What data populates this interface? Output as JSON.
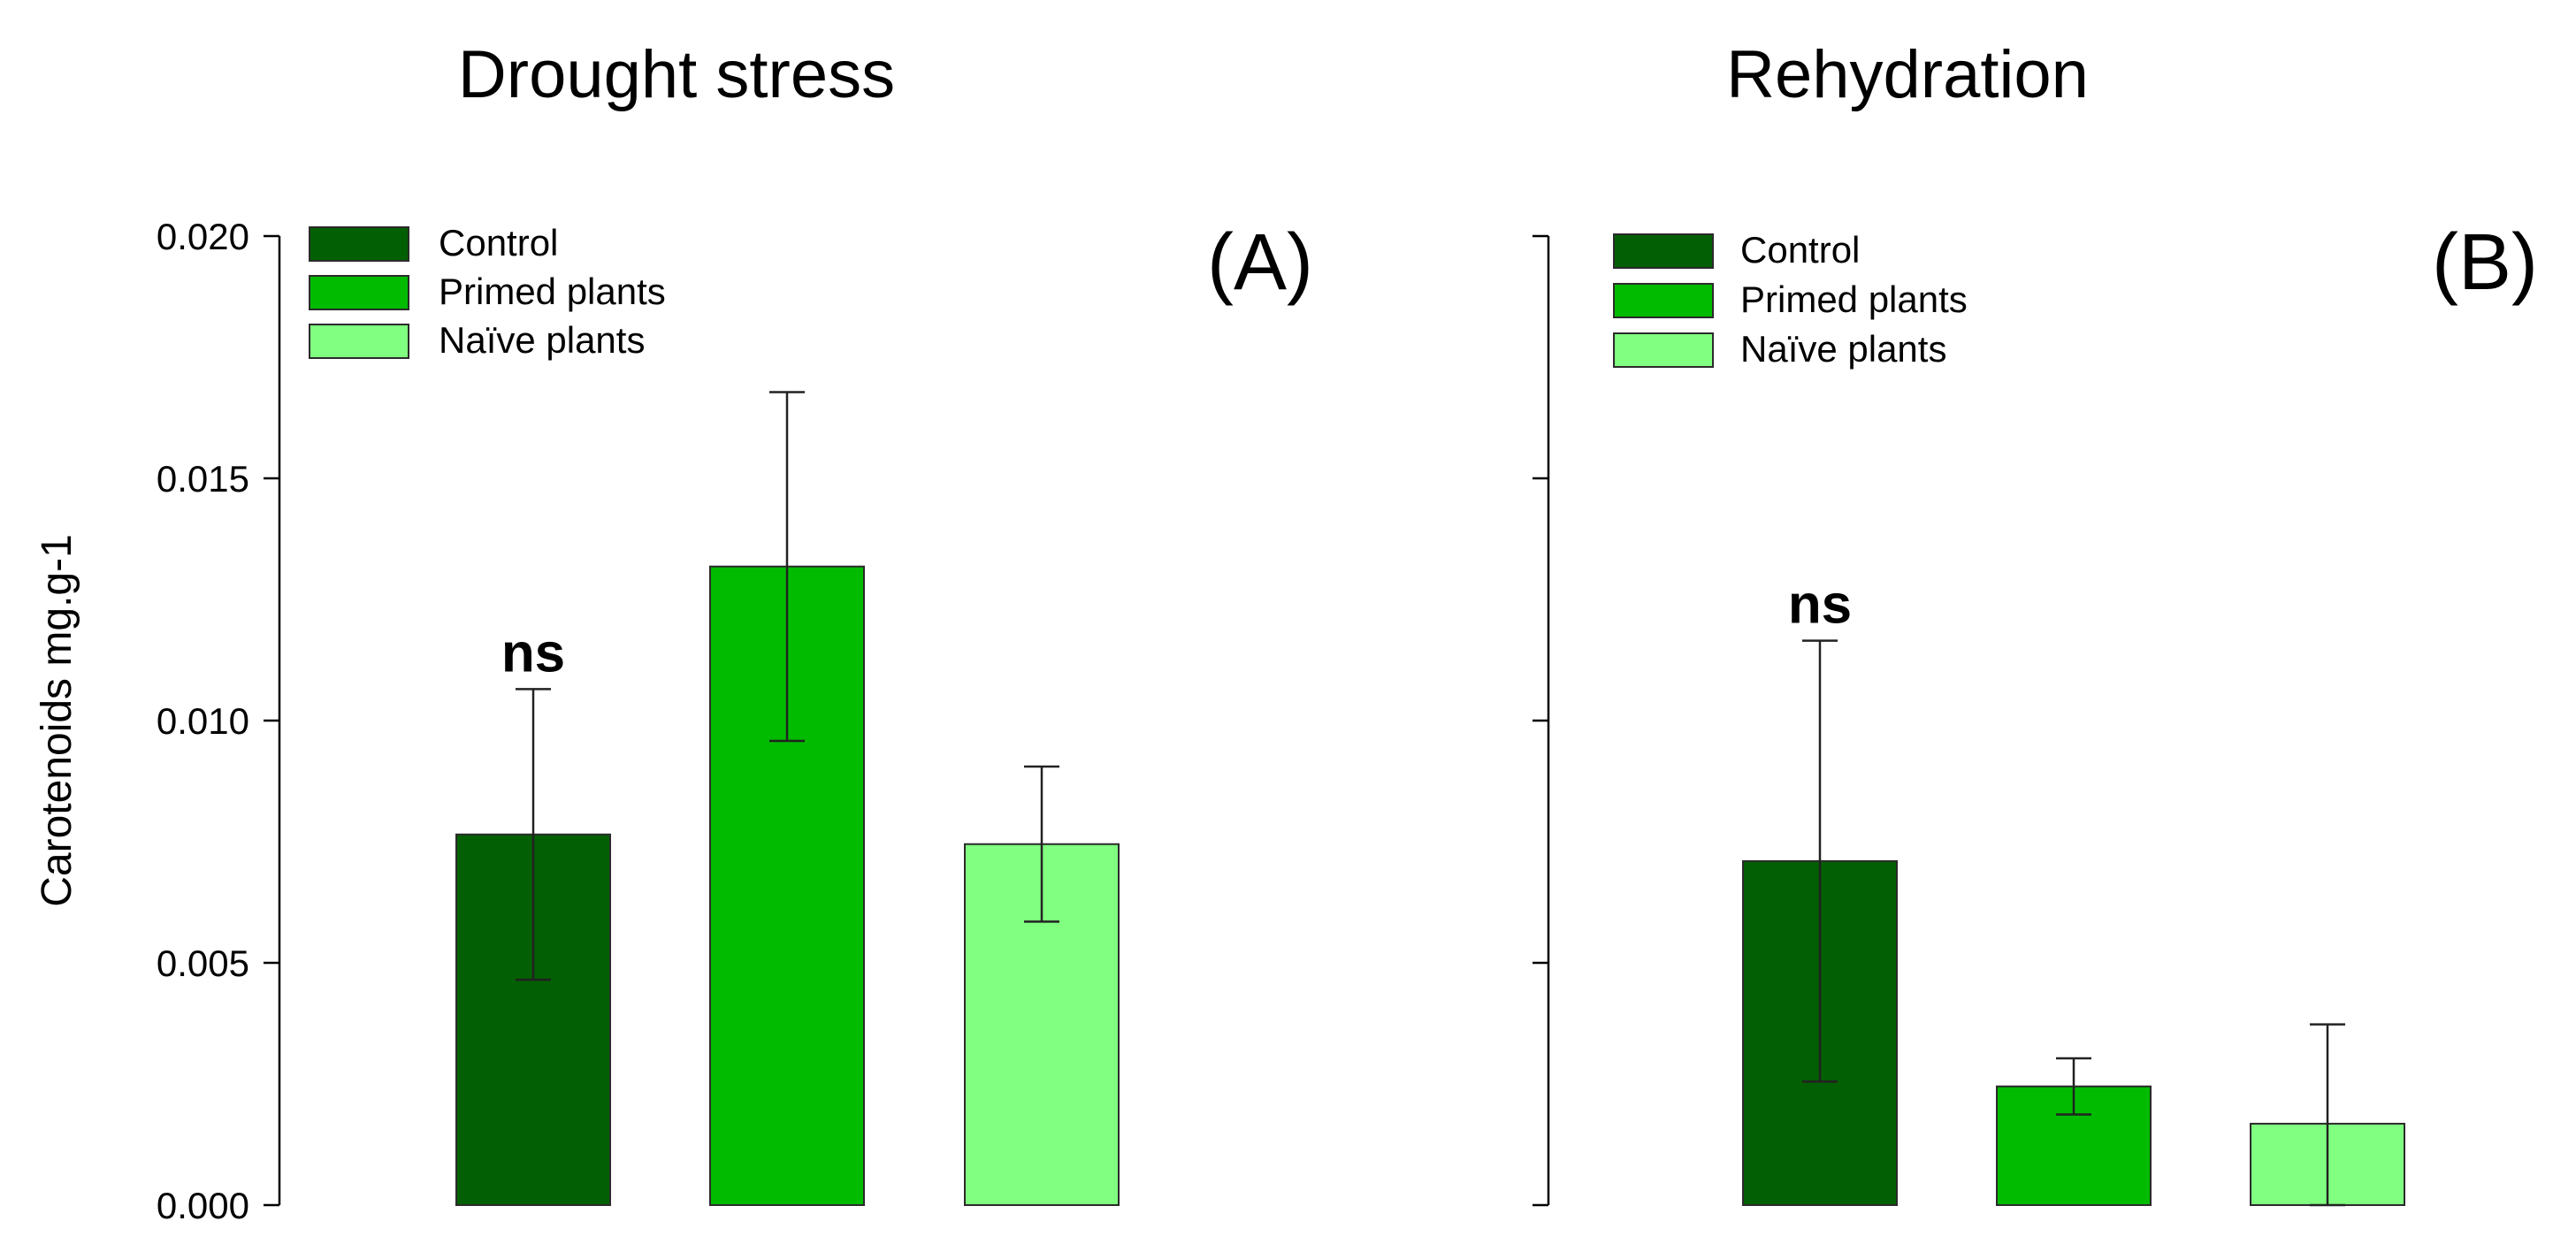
{
  "chart_data": [
    {
      "type": "bar",
      "panel_label": "(A)",
      "title": "Drought stress",
      "ylabel": "Carotenoids mg.g-1",
      "xlabel": "",
      "ylim": [
        0,
        0.02
      ],
      "y_ticks": [
        "0.000",
        "0.005",
        "0.010",
        "0.015",
        "0.020"
      ],
      "y_tick_values": [
        0,
        0.005,
        0.01,
        0.015,
        0.02
      ],
      "grid": false,
      "legend_position": "top-left",
      "categories": [
        "Control",
        "Primed plants",
        "Naïve plants"
      ],
      "series": [
        {
          "name": "Control",
          "color": "#035f03",
          "value": 0.00765,
          "error": 0.003
        },
        {
          "name": "Primed plants",
          "color": "#00bb00",
          "value": 0.01318,
          "error": 0.0036
        },
        {
          "name": "Naïve plants",
          "color": "#80ff80",
          "value": 0.00745,
          "error": 0.0016
        }
      ],
      "annotations": [
        {
          "text": "ns",
          "category_index": 0
        }
      ]
    },
    {
      "type": "bar",
      "panel_label": "(B)",
      "title": "Rehydration",
      "ylabel": "",
      "xlabel": "",
      "ylim": [
        0,
        0.02
      ],
      "y_ticks": [
        "",
        "",
        "",
        "",
        ""
      ],
      "y_tick_values": [
        0,
        0.005,
        0.01,
        0.015,
        0.02
      ],
      "grid": false,
      "legend_position": "top-left",
      "categories": [
        "Control",
        "Primed plants",
        "Naïve plants"
      ],
      "series": [
        {
          "name": "Control",
          "color": "#035f03",
          "value": 0.0071,
          "error": 0.00455
        },
        {
          "name": "Primed plants",
          "color": "#00bb00",
          "value": 0.00245,
          "error": 0.00058
        },
        {
          "name": "Naïve plants",
          "color": "#80ff80",
          "value": 0.00168,
          "error": 0.00205
        }
      ],
      "annotations": [
        {
          "text": "ns",
          "category_index": 0
        }
      ]
    }
  ]
}
